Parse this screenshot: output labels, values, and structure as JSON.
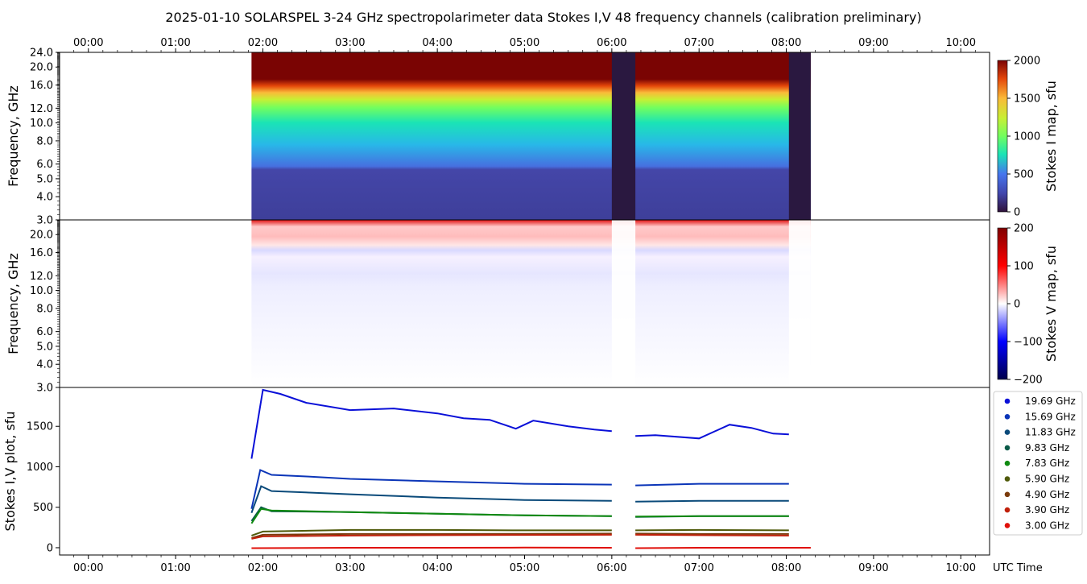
{
  "title": "2025-01-10  SOLARSPEL  3-24 GHz spectropolarimeter data   Stokes I,V   48 frequency channels   (calibration preliminary)",
  "chart_data": {
    "type": "heatmap",
    "time_ticks": [
      "00:00",
      "01:00",
      "02:00",
      "03:00",
      "04:00",
      "05:00",
      "06:00",
      "07:00",
      "08:00",
      "09:00",
      "10:00"
    ],
    "time_range_hours": [
      -0.33,
      10.33
    ],
    "x_label": "UTC Time",
    "observation_hours": [
      1.87,
      8.28
    ],
    "gaps_hours": [
      [
        6.0,
        6.27
      ],
      [
        8.03,
        8.28
      ]
    ],
    "panel_I": {
      "ylabel": "Frequency, GHz",
      "yticks": [
        "3.0",
        "4.0",
        "5.0",
        "6.0",
        "8.0",
        "10.0",
        "12.0",
        "16.0",
        "20.0",
        "24.0"
      ],
      "colorbar_label": "Stokes I map, sfu",
      "colorbar_ticks": [
        "0",
        "500",
        "1000",
        "1500",
        "2000"
      ],
      "range": [
        0,
        2000
      ]
    },
    "panel_V": {
      "ylabel": "Frequency, GHz",
      "yticks": [
        "3.0",
        "4.0",
        "5.0",
        "6.0",
        "8.0",
        "10.0",
        "12.0",
        "16.0",
        "20.0"
      ],
      "colorbar_label": "Stokes V map, sfu",
      "colorbar_ticks": [
        "200",
        "100",
        "0",
        "−100",
        "−200"
      ],
      "range": [
        -200,
        200
      ]
    },
    "panel_plot": {
      "ylabel": "Stokes I,V plot, sfu",
      "yticks": [
        "0",
        "500",
        "1000",
        "1500"
      ],
      "ylim": [
        -90,
        1980
      ],
      "series": [
        {
          "name": "19.69 GHz",
          "color": "#0a10d8",
          "points": [
            [
              1.87,
              1100
            ],
            [
              2.0,
              1950
            ],
            [
              2.2,
              1900
            ],
            [
              2.5,
              1790
            ],
            [
              3.0,
              1700
            ],
            [
              3.5,
              1720
            ],
            [
              4.0,
              1660
            ],
            [
              4.3,
              1600
            ],
            [
              4.6,
              1580
            ],
            [
              4.9,
              1470
            ],
            [
              5.1,
              1570
            ],
            [
              5.5,
              1500
            ],
            [
              5.8,
              1460
            ],
            [
              6.0,
              1440
            ]
          ],
          "points2": [
            [
              6.27,
              1380
            ],
            [
              6.5,
              1390
            ],
            [
              7.0,
              1350
            ],
            [
              7.35,
              1520
            ],
            [
              7.6,
              1480
            ],
            [
              7.85,
              1410
            ],
            [
              8.03,
              1400
            ]
          ]
        },
        {
          "name": "15.69 GHz",
          "color": "#0b35b8",
          "points": [
            [
              1.87,
              480
            ],
            [
              1.97,
              960
            ],
            [
              2.1,
              900
            ],
            [
              2.5,
              880
            ],
            [
              3.0,
              850
            ],
            [
              4.0,
              820
            ],
            [
              5.0,
              790
            ],
            [
              6.0,
              780
            ]
          ],
          "points2": [
            [
              6.27,
              770
            ],
            [
              7.0,
              790
            ],
            [
              8.03,
              790
            ]
          ]
        },
        {
          "name": "11.83 GHz",
          "color": "#0a4a7a",
          "points": [
            [
              1.87,
              430
            ],
            [
              1.98,
              760
            ],
            [
              2.1,
              700
            ],
            [
              3.0,
              660
            ],
            [
              4.0,
              620
            ],
            [
              5.0,
              590
            ],
            [
              6.0,
              580
            ]
          ],
          "points2": [
            [
              6.27,
              570
            ],
            [
              7.0,
              580
            ],
            [
              8.03,
              580
            ]
          ]
        },
        {
          "name": "9.83 GHz",
          "color": "#0a5a48",
          "points": [
            [
              1.87,
              330
            ],
            [
              1.98,
              500
            ],
            [
              2.1,
              450
            ],
            [
              3.0,
              440
            ],
            [
              4.0,
              420
            ],
            [
              5.0,
              400
            ],
            [
              6.0,
              390
            ]
          ],
          "points2": [
            [
              6.27,
              380
            ],
            [
              7.0,
              390
            ],
            [
              8.03,
              390
            ]
          ]
        },
        {
          "name": "7.83 GHz",
          "color": "#0f8a10",
          "points": [
            [
              1.87,
              300
            ],
            [
              1.98,
              480
            ],
            [
              2.1,
              460
            ],
            [
              3.0,
              440
            ],
            [
              4.0,
              420
            ],
            [
              5.0,
              400
            ],
            [
              6.0,
              390
            ]
          ],
          "points2": [
            [
              6.27,
              385
            ],
            [
              7.0,
              390
            ],
            [
              8.03,
              390
            ]
          ]
        },
        {
          "name": "5.90 GHz",
          "color": "#4f5a0a",
          "points": [
            [
              1.87,
              150
            ],
            [
              2.0,
              200
            ],
            [
              3.0,
              220
            ],
            [
              4.0,
              220
            ],
            [
              5.0,
              215
            ],
            [
              6.0,
              215
            ]
          ],
          "points2": [
            [
              6.27,
              215
            ],
            [
              7.0,
              220
            ],
            [
              8.03,
              215
            ]
          ]
        },
        {
          "name": "4.90 GHz",
          "color": "#7a3a0a",
          "points": [
            [
              1.87,
              120
            ],
            [
              2.0,
              160
            ],
            [
              3.0,
              170
            ],
            [
              4.0,
              170
            ],
            [
              5.0,
              172
            ],
            [
              6.0,
              175
            ]
          ],
          "points2": [
            [
              6.27,
              175
            ],
            [
              7.0,
              170
            ],
            [
              8.03,
              170
            ]
          ]
        },
        {
          "name": "3.90 GHz",
          "color": "#c0200a",
          "points": [
            [
              1.87,
              110
            ],
            [
              2.0,
              140
            ],
            [
              3.0,
              150
            ],
            [
              4.0,
              155
            ],
            [
              5.0,
              158
            ],
            [
              6.0,
              160
            ]
          ],
          "points2": [
            [
              6.27,
              160
            ],
            [
              7.0,
              155
            ],
            [
              8.03,
              150
            ]
          ]
        },
        {
          "name": "3.00 GHz",
          "color": "#e0100a",
          "points": [
            [
              1.87,
              -5
            ],
            [
              3.0,
              0
            ],
            [
              4.0,
              0
            ],
            [
              5.0,
              2
            ],
            [
              6.0,
              0
            ]
          ],
          "points2": [
            [
              6.27,
              -5
            ],
            [
              7.0,
              0
            ],
            [
              8.03,
              0
            ],
            [
              8.28,
              0
            ]
          ]
        }
      ]
    }
  }
}
